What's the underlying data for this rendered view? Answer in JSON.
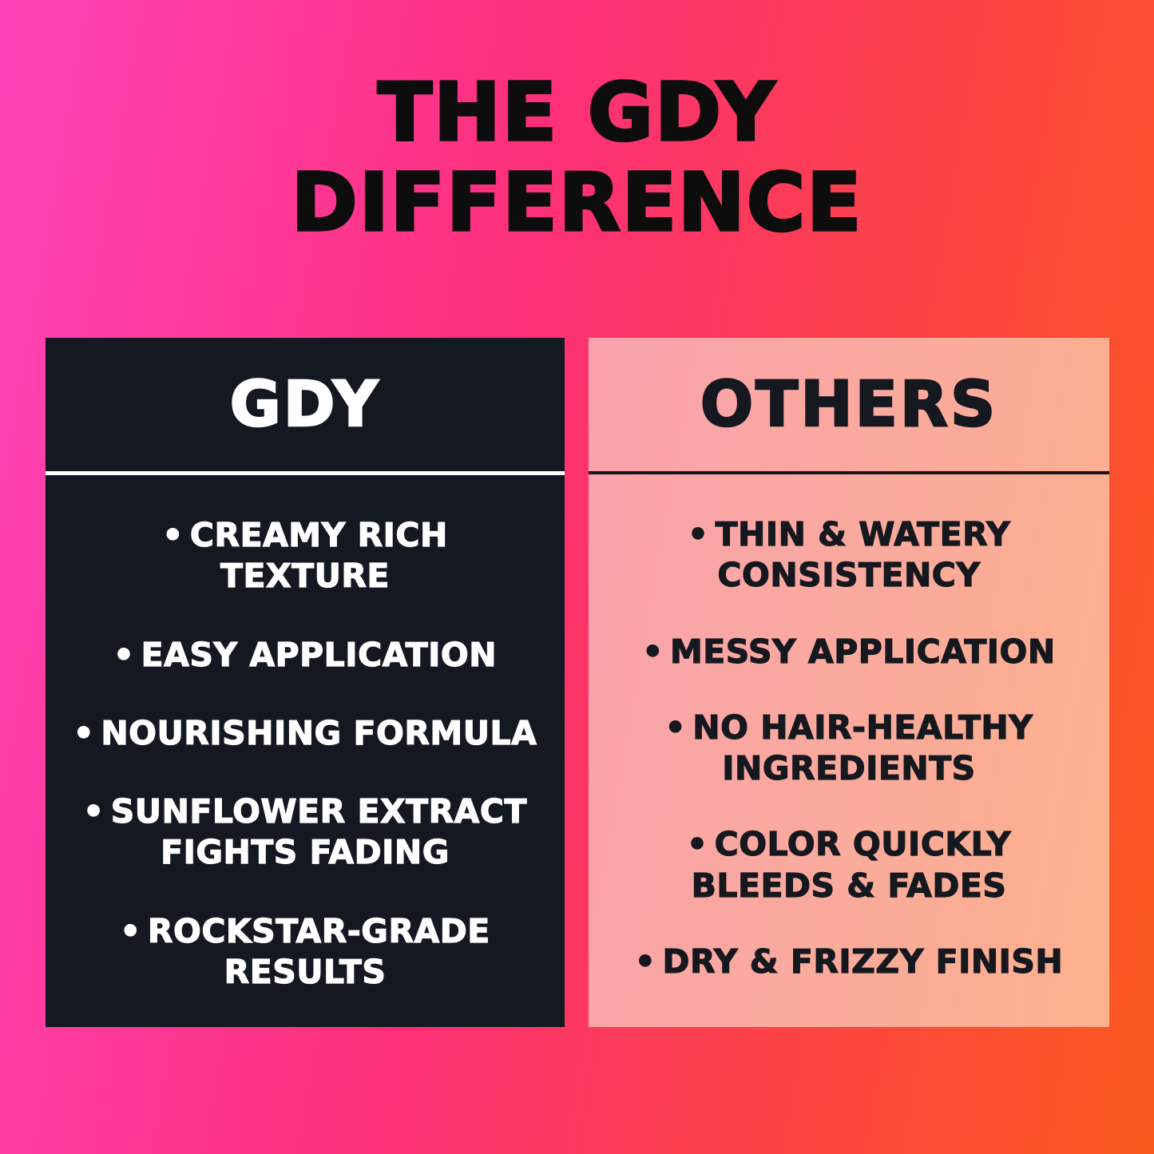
{
  "header": {
    "title": "THE GDY\nDIFFERENCE"
  },
  "ui": {
    "bullet_char": "•"
  },
  "comparison": {
    "gdy": {
      "header": "GDY",
      "items": [
        "CREAMY RICH\nTEXTURE",
        "EASY APPLICATION",
        "NOURISHING FORMULA",
        "SUNFLOWER EXTRACT\nFIGHTS FADING",
        "ROCKSTAR-GRADE\nRESULTS"
      ]
    },
    "others": {
      "header": "OTHERS",
      "items": [
        "THIN & WATERY\nCONSISTENCY",
        "MESSY APPLICATION",
        "NO HAIR-HEALTHY\nINGREDIENTS",
        "COLOR QUICKLY\nBLEEDS & FADES",
        "DRY & FRIZZY FINISH"
      ]
    }
  },
  "colors": {
    "background_gradient": [
      "#fe43b9",
      "#fd2f79",
      "#fc4343",
      "#fb5a1e"
    ],
    "gdy_card_background": "#141821",
    "gdy_card_text": "#ffffff",
    "gdy_divider": "#ffffff",
    "others_card_gradient": [
      "#f9a2ae",
      "#fcb18c"
    ],
    "others_card_text": "#16181f",
    "others_divider": "#1a141a",
    "title_text": "#0d0d0d"
  }
}
